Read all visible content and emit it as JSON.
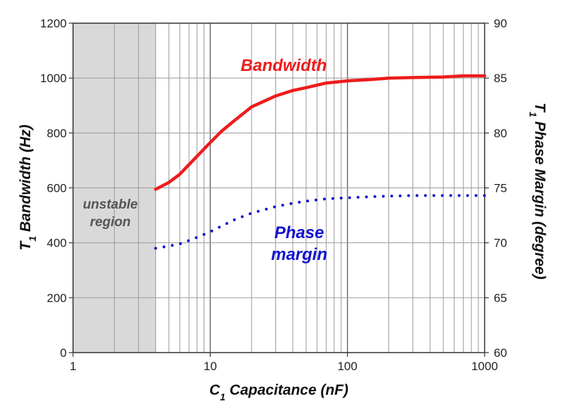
{
  "colors": {
    "bandwidth": "#ee1c1c",
    "phase_margin": "#1111cc",
    "unstable_region": "#d9d9d9",
    "grid": "#9a9a9a",
    "annotation_gray": "#555555"
  },
  "chart_data": {
    "type": "line",
    "xscale": "log",
    "xlim": [
      1,
      1000
    ],
    "ylim_left": [
      0,
      1200
    ],
    "ylim_right": [
      60,
      90
    ],
    "grid": true,
    "xlabel": {
      "main": "C",
      "sub": "1",
      "rest": " Capacitance (nF)"
    },
    "ylabel_left": {
      "main": "T",
      "sub": "1",
      "rest": " Bandwidth (Hz)"
    },
    "ylabel_right": {
      "main": "T",
      "sub": "1",
      "rest": " Phase Margin (degree)"
    },
    "x_ticks": [
      "1",
      "10",
      "100",
      "1000"
    ],
    "y_left_ticks": [
      "0",
      "200",
      "400",
      "600",
      "800",
      "1000",
      "1200"
    ],
    "y_right_ticks": [
      "60",
      "65",
      "70",
      "75",
      "80",
      "85",
      "90"
    ],
    "shaded_region": {
      "x_from": 1,
      "x_to": 4,
      "label_line1": "unstable",
      "label_line2": "region"
    },
    "series": [
      {
        "name": "Bandwidth",
        "axis": "left",
        "style": "solid",
        "x": [
          4,
          5,
          6,
          7,
          8,
          10,
          12,
          15,
          20,
          30,
          40,
          50,
          70,
          100,
          150,
          200,
          300,
          500,
          700,
          1000
        ],
        "y": [
          595,
          620,
          650,
          685,
          715,
          765,
          805,
          845,
          895,
          935,
          955,
          965,
          982,
          990,
          995,
          1000,
          1002,
          1004,
          1008,
          1008
        ]
      },
      {
        "name": "Phase margin",
        "name_line1": "Phase",
        "name_line2": "margin",
        "axis": "right",
        "style": "dotted",
        "x": [
          4,
          5,
          6,
          7,
          8,
          10,
          12,
          15,
          20,
          30,
          40,
          50,
          70,
          100,
          150,
          200,
          300,
          500,
          700,
          1000
        ],
        "y": [
          69.5,
          69.7,
          69.9,
          70.2,
          70.5,
          71.0,
          71.5,
          72.1,
          72.7,
          73.3,
          73.6,
          73.8,
          74.0,
          74.1,
          74.2,
          74.25,
          74.3,
          74.3,
          74.3,
          74.3
        ]
      }
    ]
  }
}
